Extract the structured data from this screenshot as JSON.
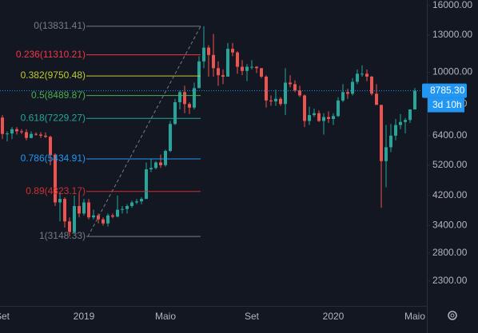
{
  "chart_data": {
    "type": "candlestick",
    "log_scale": true,
    "up_color": "#26a69a",
    "down_color": "#ef5350",
    "categories": [
      "Set",
      null,
      null,
      null,
      null,
      null,
      null,
      null,
      null,
      null,
      null,
      null,
      null,
      null,
      null,
      null,
      null,
      "2019",
      null,
      null,
      null,
      null,
      null,
      null,
      null,
      null,
      null,
      null,
      null,
      null,
      null,
      null,
      null,
      null,
      "Maio",
      null,
      null,
      null,
      null,
      null,
      null,
      null,
      null,
      null,
      null,
      null,
      null,
      null,
      null,
      null,
      null,
      null,
      "Set",
      null,
      null,
      null,
      null,
      null,
      null,
      null,
      null,
      null,
      null,
      null,
      null,
      null,
      null,
      null,
      null,
      "2020",
      null,
      null,
      null,
      null,
      null,
      null,
      null,
      null,
      null,
      null,
      null,
      null,
      null,
      null,
      null,
      null,
      "Maio"
    ],
    "ohlc": {
      "open": [
        7270,
        6480,
        6500,
        6700,
        6600,
        6560,
        6300,
        6480,
        6450,
        6400,
        6350,
        5600,
        4000,
        4100,
        3500,
        3250,
        3900,
        3700,
        4000,
        3600,
        3650,
        3550,
        3450,
        3650,
        3620,
        3800,
        3820,
        3900,
        4000,
        4030,
        4100,
        5050,
        5100,
        5300,
        5200,
        5750,
        6950,
        8100,
        8700,
        8000,
        7800,
        8950,
        10800,
        11900,
        11300,
        10300,
        9800,
        9700,
        11800,
        11500,
        10400,
        10100,
        10400,
        10400,
        10300,
        9700,
        8200,
        8150,
        8300,
        8000,
        9300,
        9200,
        8800,
        8500,
        7100,
        7400,
        7500,
        7100,
        7300,
        7200,
        7350,
        8200,
        8700,
        8600,
        9350,
        9900,
        9900,
        9700,
        8600,
        7950,
        5350,
        5900,
        6400,
        6900,
        7050,
        7150,
        7700
      ],
      "high": [
        7400,
        6600,
        6800,
        6800,
        6700,
        6700,
        6600,
        6550,
        6560,
        6550,
        6400,
        5650,
        4300,
        4150,
        3600,
        4200,
        4300,
        4100,
        4100,
        3800,
        3700,
        3600,
        3700,
        3700,
        4200,
        3900,
        3950,
        4050,
        4100,
        4150,
        5300,
        5450,
        5350,
        5600,
        5800,
        7100,
        8300,
        8800,
        9100,
        8100,
        9300,
        11200,
        13831,
        12100,
        13100,
        10800,
        10200,
        12300,
        12300,
        11600,
        10900,
        10600,
        10900,
        10450,
        10300,
        9800,
        8500,
        8850,
        8400,
        10300,
        9800,
        9450,
        9100,
        8550,
        7850,
        7750,
        7650,
        7500,
        7600,
        7500,
        8400,
        9200,
        8900,
        9600,
        10200,
        10500,
        10200,
        9750,
        9200,
        7950,
        6900,
        6950,
        7200,
        7450,
        7250,
        7700,
        8950
      ],
      "low": [
        6250,
        6150,
        6250,
        6450,
        6480,
        6200,
        6280,
        6400,
        6300,
        6300,
        5200,
        3900,
        3500,
        3350,
        3148,
        3200,
        3600,
        3650,
        3550,
        3550,
        3450,
        3400,
        3380,
        3580,
        3600,
        3700,
        3700,
        3850,
        3950,
        3950,
        4100,
        4950,
        5050,
        5100,
        5150,
        5700,
        6900,
        7700,
        7500,
        7450,
        7700,
        8950,
        10300,
        9700,
        9700,
        9100,
        9200,
        9700,
        11200,
        9900,
        9800,
        9400,
        10200,
        9950,
        9600,
        7800,
        7900,
        7900,
        7900,
        7400,
        9000,
        8700,
        8400,
        6800,
        6900,
        7300,
        7050,
        6450,
        7000,
        6900,
        7300,
        8100,
        8300,
        8500,
        9200,
        9700,
        9400,
        8500,
        8400,
        3850,
        4450,
        5700,
        6200,
        6700,
        6500,
        7000,
        7700
      ],
      "close": [
        6480,
        6500,
        6700,
        6600,
        6560,
        6300,
        6480,
        6450,
        6400,
        6350,
        5600,
        4000,
        4100,
        3500,
        3250,
        3900,
        3700,
        4000,
        3600,
        3650,
        3550,
        3450,
        3650,
        3620,
        3800,
        3820,
        3900,
        4000,
        4030,
        4100,
        5050,
        5100,
        5300,
        5200,
        5750,
        6950,
        8100,
        8700,
        8000,
        7800,
        8950,
        10800,
        11900,
        11300,
        10300,
        9800,
        9700,
        11800,
        11500,
        10400,
        10100,
        10400,
        10400,
        10300,
        9700,
        8200,
        8150,
        8300,
        8000,
        9300,
        9200,
        8800,
        8500,
        7100,
        7400,
        7500,
        7100,
        7300,
        7200,
        7350,
        8200,
        8700,
        8600,
        9350,
        9900,
        9900,
        9700,
        8600,
        7950,
        5350,
        5900,
        6400,
        6900,
        7050,
        7150,
        7700,
        8785.3
      ]
    },
    "ylim": [
      1931,
      16642
    ],
    "yticks": [
      {
        "value": 2300,
        "label": "2300.00"
      },
      {
        "value": 2800,
        "label": "2800.00"
      },
      {
        "value": 3400,
        "label": "3400.00"
      },
      {
        "value": 4200,
        "label": "4200.00"
      },
      {
        "value": 5200,
        "label": "5200.00"
      },
      {
        "value": 6400,
        "label": "6400.00"
      },
      {
        "value": 8000,
        "label": "8000.00"
      },
      {
        "value": 10000,
        "label": "10000.00"
      },
      {
        "value": 13000,
        "label": "13000.00"
      },
      {
        "value": 16000,
        "label": "16000.00"
      }
    ],
    "fibonacci": [
      {
        "value": 13831.41,
        "label": "0(13831.41)",
        "color": "#787b86"
      },
      {
        "value": 11310.21,
        "label": "0.236(11310.21)",
        "color": "#f23645"
      },
      {
        "value": 9750.48,
        "label": "0.382(9750.48)",
        "color": "#c0ca33"
      },
      {
        "value": 8489.87,
        "label": "0.5(8489.87)",
        "color": "#4caf50"
      },
      {
        "value": 7229.27,
        "label": "0.618(7229.27)",
        "color": "#26a69a"
      },
      {
        "value": 5434.91,
        "label": "0.786(5434.91)",
        "color": "#2196f3"
      },
      {
        "value": 4323.17,
        "label": "0.89(4323.17)",
        "color": "#d32f2f"
      },
      {
        "value": 3148.33,
        "label": "1(3148.33)",
        "color": "#787b86"
      }
    ],
    "last_price": {
      "value": 8785.3,
      "label": "8785.30",
      "color": "#2196f3"
    },
    "countdown": "3d 10h"
  }
}
